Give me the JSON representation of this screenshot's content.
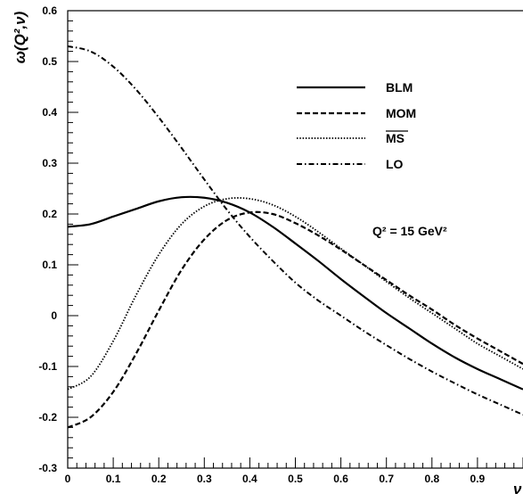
{
  "chart_data": {
    "type": "line",
    "title": "",
    "xlabel": "ν",
    "ylabel": "ω(Q²,ν)",
    "xlim": [
      0,
      1
    ],
    "ylim": [
      -0.3,
      0.6
    ],
    "xticks": [
      0,
      0.1,
      0.2,
      0.3,
      0.4,
      0.5,
      0.6,
      0.7,
      0.8,
      0.9
    ],
    "xtick_labels": [
      "0",
      "0.1",
      "0.2",
      "0.3",
      "0.4",
      "0.5",
      "0.6",
      "0.7",
      "0.8",
      "0.9"
    ],
    "yticks": [
      -0.3,
      -0.2,
      -0.1,
      0,
      0.1,
      0.2,
      0.3,
      0.4,
      0.5,
      0.6
    ],
    "ytick_labels": [
      "-0.3",
      "-0.2",
      "-0.1",
      "0",
      "0.1",
      "0.2",
      "0.3",
      "0.4",
      "0.5",
      "0.6"
    ],
    "grid": false,
    "legend_position": "top-right",
    "annotation": "Q² = 15 GeV²",
    "series": [
      {
        "name": "BLM",
        "dash": "solid",
        "x": [
          0,
          0.05,
          0.1,
          0.15,
          0.2,
          0.25,
          0.3,
          0.35,
          0.4,
          0.45,
          0.5,
          0.55,
          0.6,
          0.65,
          0.7,
          0.75,
          0.8,
          0.85,
          0.9,
          0.95,
          1.0
        ],
        "y": [
          0.175,
          0.18,
          0.195,
          0.21,
          0.225,
          0.233,
          0.232,
          0.222,
          0.203,
          0.175,
          0.142,
          0.108,
          0.072,
          0.038,
          0.005,
          -0.025,
          -0.055,
          -0.082,
          -0.105,
          -0.125,
          -0.145
        ]
      },
      {
        "name": "MOM",
        "dash": "dashed",
        "x": [
          0,
          0.05,
          0.1,
          0.15,
          0.2,
          0.25,
          0.3,
          0.35,
          0.4,
          0.45,
          0.5,
          0.55,
          0.6,
          0.65,
          0.7,
          0.75,
          0.8,
          0.85,
          0.9,
          0.95,
          1.0
        ],
        "y": [
          -0.22,
          -0.2,
          -0.15,
          -0.075,
          0.01,
          0.09,
          0.15,
          0.188,
          0.203,
          0.2,
          0.182,
          0.158,
          0.13,
          0.1,
          0.07,
          0.04,
          0.012,
          -0.018,
          -0.045,
          -0.07,
          -0.095
        ]
      },
      {
        "name": "MS",
        "dash": "dotted",
        "x": [
          0,
          0.05,
          0.1,
          0.15,
          0.2,
          0.25,
          0.3,
          0.35,
          0.4,
          0.45,
          0.5,
          0.55,
          0.6,
          0.65,
          0.7,
          0.75,
          0.8,
          0.85,
          0.9,
          0.95,
          1.0
        ],
        "y": [
          -0.145,
          -0.12,
          -0.05,
          0.04,
          0.12,
          0.18,
          0.215,
          0.23,
          0.23,
          0.218,
          0.195,
          0.165,
          0.132,
          0.1,
          0.067,
          0.035,
          0.005,
          -0.025,
          -0.055,
          -0.08,
          -0.105
        ]
      },
      {
        "name": "LO",
        "dash": "dashdot",
        "x": [
          0,
          0.05,
          0.1,
          0.15,
          0.2,
          0.25,
          0.3,
          0.35,
          0.4,
          0.45,
          0.5,
          0.55,
          0.6,
          0.65,
          0.7,
          0.75,
          0.8,
          0.85,
          0.9,
          0.95,
          1.0
        ],
        "y": [
          0.53,
          0.52,
          0.49,
          0.445,
          0.39,
          0.33,
          0.268,
          0.208,
          0.155,
          0.108,
          0.065,
          0.03,
          0.0,
          -0.03,
          -0.058,
          -0.085,
          -0.11,
          -0.133,
          -0.155,
          -0.175,
          -0.195
        ]
      }
    ]
  }
}
